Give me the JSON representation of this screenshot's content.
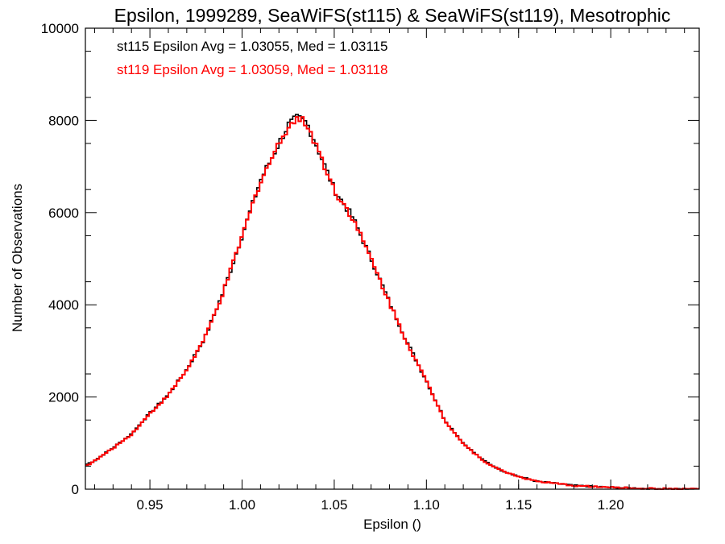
{
  "chart_data": {
    "type": "histogram",
    "title": "Epsilon, 1999289, SeaWiFS(st115) & SeaWiFS(st119), Mesotrophic",
    "xlabel": "Epsilon ()",
    "ylabel": "Number of Observations",
    "xlim": [
      0.915,
      1.248
    ],
    "ylim": [
      0,
      10000
    ],
    "xticks": [
      "0.95",
      "1.00",
      "1.05",
      "1.10",
      "1.15",
      "1.20"
    ],
    "yticks": [
      "0",
      "2000",
      "4000",
      "6000",
      "8000",
      "10000"
    ],
    "grid": false,
    "annotations": [
      {
        "text": "st115 Epsilon Avg = 1.03055, Med = 1.03115",
        "color": "#000000"
      },
      {
        "text": "st119 Epsilon Avg = 1.03059, Med = 1.03118",
        "color": "#ff0000"
      }
    ],
    "series": [
      {
        "color": "#000000",
        "x": [
          0.915,
          0.92,
          0.93,
          0.94,
          0.95,
          0.96,
          0.97,
          0.98,
          0.99,
          1.0,
          1.01,
          1.02,
          1.025,
          1.03,
          1.035,
          1.04,
          1.045,
          1.05,
          1.06,
          1.07,
          1.08,
          1.09,
          1.1,
          1.11,
          1.12,
          1.13,
          1.14,
          1.15,
          1.16,
          1.18,
          1.2,
          1.22,
          1.248
        ],
        "y": [
          530,
          620,
          900,
          1200,
          1650,
          2050,
          2600,
          3300,
          4300,
          5500,
          6700,
          7500,
          7900,
          8050,
          7950,
          7500,
          7000,
          6500,
          5900,
          5000,
          4050,
          3150,
          2350,
          1500,
          1000,
          650,
          420,
          280,
          170,
          80,
          40,
          15,
          5
        ]
      },
      {
        "color": "#ff0000",
        "x": [
          0.915,
          0.92,
          0.93,
          0.94,
          0.95,
          0.96,
          0.97,
          0.98,
          0.99,
          1.0,
          1.01,
          1.02,
          1.025,
          1.03,
          1.035,
          1.04,
          1.045,
          1.05,
          1.06,
          1.07,
          1.08,
          1.09,
          1.1,
          1.11,
          1.12,
          1.13,
          1.14,
          1.15,
          1.16,
          1.18,
          1.2,
          1.22,
          1.248
        ],
        "y": [
          500,
          610,
          890,
          1190,
          1640,
          2040,
          2590,
          3290,
          4290,
          5480,
          6690,
          7490,
          7890,
          8040,
          7940,
          7490,
          6990,
          6490,
          5890,
          4990,
          4040,
          3140,
          2340,
          1490,
          990,
          640,
          415,
          275,
          168,
          78,
          38,
          14,
          5
        ]
      }
    ]
  }
}
